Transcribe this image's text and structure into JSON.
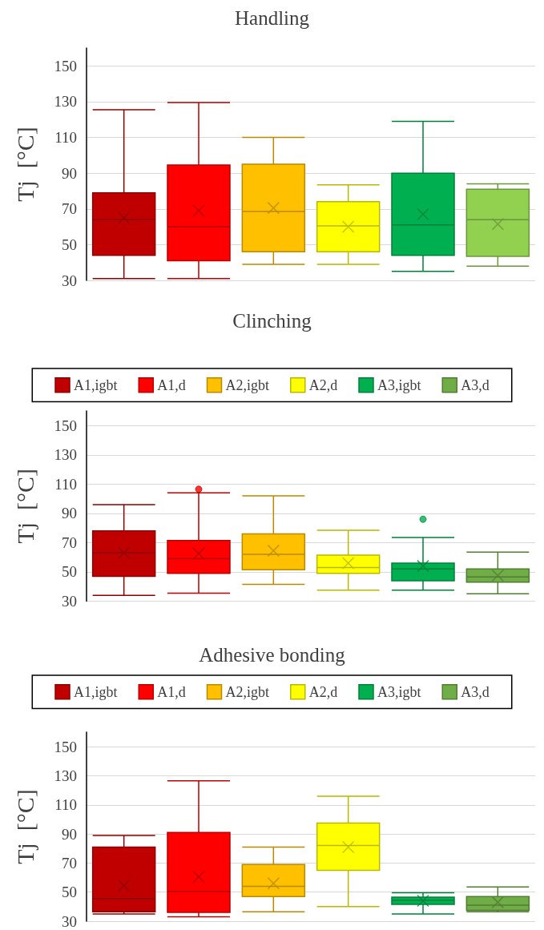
{
  "chart_data": [
    {
      "type": "box",
      "title": "Handling",
      "ylabel": "Tj  [°C]",
      "categories": [
        null
      ],
      "ylim": [
        30,
        160
      ],
      "yticks": [
        30,
        50,
        70,
        90,
        110,
        130,
        150
      ],
      "grid": "y",
      "legend": false,
      "tick_labels": "y",
      "series": [
        {
          "color": "#c00000",
          "boxes": [
            {
              "low": 31,
              "q1": 44,
              "median": 64,
              "q3": 79,
              "high": 125.5,
              "mean": 65
            }
          ]
        },
        {
          "color": "#ff0000",
          "boxes": [
            {
              "low": 31,
              "q1": 41,
              "median": 60,
              "q3": 94.5,
              "high": 129.5,
              "mean": 69
            }
          ]
        },
        {
          "color": "#ffc000",
          "boxes": [
            {
              "low": 39,
              "q1": 46,
              "median": 68.5,
              "q3": 95,
              "high": 110,
              "mean": 70.5
            }
          ]
        },
        {
          "color": "#ffff00",
          "boxes": [
            {
              "low": 39,
              "q1": 46,
              "median": 60.5,
              "q3": 74,
              "high": 83.5,
              "mean": 60
            }
          ]
        },
        {
          "color": "#00b050",
          "boxes": [
            {
              "low": 35,
              "q1": 44,
              "median": 61,
              "q3": 90,
              "high": 119,
              "mean": 67
            }
          ]
        },
        {
          "color": "#92d050",
          "boxes": [
            {
              "low": 38,
              "q1": 43.5,
              "median": 64,
              "q3": 81,
              "high": 84,
              "mean": 61.5
            }
          ]
        }
      ]
    },
    {
      "type": "box",
      "title": "Clinching",
      "ylabel": "Tj  [°C]",
      "categories": [
        null
      ],
      "ylim": [
        30,
        160
      ],
      "yticks": [
        30,
        50,
        70,
        90,
        110,
        130,
        150
      ],
      "grid": "y",
      "legend": "top",
      "tick_labels": "y",
      "series": [
        {
          "name": "A1,igbt",
          "color": "#c00000",
          "boxes": [
            {
              "low": 34,
              "q1": 47,
              "median": 63,
              "q3": 78,
              "high": 96,
              "mean": 63
            }
          ]
        },
        {
          "name": "A1,d",
          "color": "#ff0000",
          "boxes": [
            {
              "low": 35.5,
              "q1": 49,
              "median": 59,
              "q3": 71.5,
              "high": 104,
              "mean": 62.5,
              "outliers": [
                106.5
              ]
            }
          ]
        },
        {
          "name": "A2,igbt",
          "color": "#ffc000",
          "boxes": [
            {
              "low": 41.5,
              "q1": 51.5,
              "median": 62,
              "q3": 76,
              "high": 102,
              "mean": 64.5
            }
          ]
        },
        {
          "name": "A2,d",
          "color": "#ffff00",
          "boxes": [
            {
              "low": 37.5,
              "q1": 49,
              "median": 53,
              "q3": 61.5,
              "high": 78.5,
              "mean": 56
            }
          ]
        },
        {
          "name": "A3,igbt",
          "color": "#00b050",
          "boxes": [
            {
              "low": 37.5,
              "q1": 44,
              "median": 52,
              "q3": 56,
              "high": 73.5,
              "mean": 54,
              "outliers": [
                86
              ]
            }
          ]
        },
        {
          "name": "A3,d",
          "color": "#70ad47",
          "boxes": [
            {
              "low": 35,
              "q1": 43,
              "median": 46.5,
              "q3": 52,
              "high": 63.5,
              "mean": 47.5
            }
          ]
        }
      ]
    },
    {
      "type": "box",
      "title": "Adhesive bonding",
      "ylabel": "Tj  [°C]",
      "categories": [
        null
      ],
      "ylim": [
        30,
        160
      ],
      "yticks": [
        30,
        50,
        70,
        90,
        110,
        130,
        150
      ],
      "grid": "y",
      "legend": "top",
      "tick_labels": "y",
      "series": [
        {
          "name": "A1,igbt",
          "color": "#c00000",
          "boxes": [
            {
              "low": 35,
              "q1": 36.5,
              "median": 45.5,
              "q3": 81,
              "high": 89,
              "mean": 54.5
            }
          ]
        },
        {
          "name": "A1,d",
          "color": "#ff0000",
          "boxes": [
            {
              "low": 33,
              "q1": 36,
              "median": 50.5,
              "q3": 91,
              "high": 126.5,
              "mean": 60.5
            }
          ]
        },
        {
          "name": "A2,igbt",
          "color": "#ffc000",
          "boxes": [
            {
              "low": 36.5,
              "q1": 47,
              "median": 54,
              "q3": 69,
              "high": 81,
              "mean": 56
            }
          ]
        },
        {
          "name": "A2,d",
          "color": "#ffff00",
          "boxes": [
            {
              "low": 40,
              "q1": 65,
              "median": 82,
              "q3": 97.5,
              "high": 116,
              "mean": 81
            }
          ]
        },
        {
          "name": "A3,igbt",
          "color": "#00b050",
          "boxes": [
            {
              "low": 35,
              "q1": 41.5,
              "median": 44.5,
              "q3": 46.5,
              "high": 49.5,
              "mean": 44
            }
          ]
        },
        {
          "name": "A3,d",
          "color": "#70ad47",
          "boxes": [
            {
              "low": 36.5,
              "q1": 37.5,
              "median": 41,
              "q3": 47,
              "high": 53.5,
              "mean": 43
            }
          ]
        }
      ]
    }
  ]
}
